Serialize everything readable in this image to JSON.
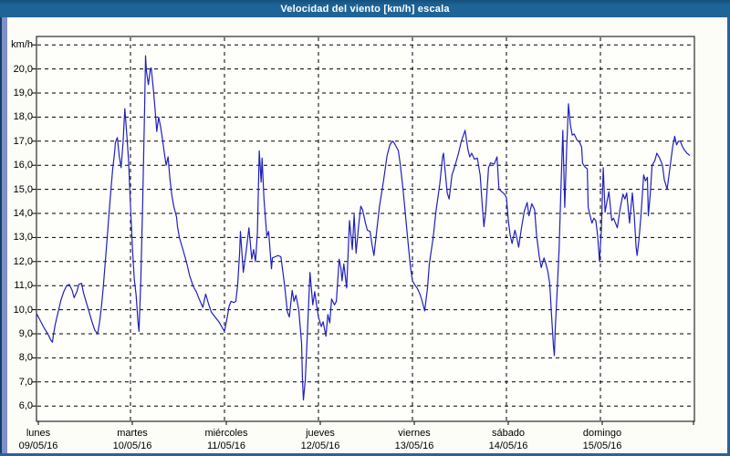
{
  "window": {
    "title": "Velocidad del viento [km/h] escala"
  },
  "colors": {
    "titlebar_bg": "#1e6496",
    "titlebar_text": "#ffffff",
    "frame_left_strip": "#7e91c4",
    "frame_edge": "#2b6399",
    "content_bg": "#fbfdf6",
    "plot_bg": "#fefefb",
    "grid_color": "#000000",
    "line_color": "#2020bf"
  },
  "chart_data": {
    "type": "line",
    "title": "Velocidad del viento [km/h] escala",
    "ylabel": "km/h",
    "xlabel": "",
    "ylim": [
      6,
      21.2
    ],
    "xlim_days": [
      0,
      7
    ],
    "grid": true,
    "grid_style": "dashed",
    "legend": false,
    "y_unit_label": "km/h",
    "y_ticks": [
      {
        "v": 20,
        "label": "20,0"
      },
      {
        "v": 19,
        "label": "19,0"
      },
      {
        "v": 18,
        "label": "18,0"
      },
      {
        "v": 17,
        "label": "17,0"
      },
      {
        "v": 16,
        "label": "16,0"
      },
      {
        "v": 15,
        "label": "15,0"
      },
      {
        "v": 14,
        "label": "14,0"
      },
      {
        "v": 13,
        "label": "13,0"
      },
      {
        "v": 12,
        "label": "12,0"
      },
      {
        "v": 11,
        "label": "11,0"
      },
      {
        "v": 10,
        "label": "10,0"
      },
      {
        "v": 9,
        "label": "9,0"
      },
      {
        "v": 8,
        "label": "8,0"
      },
      {
        "v": 7,
        "label": "7,0"
      },
      {
        "v": 6,
        "label": "6,0"
      }
    ],
    "x_ticks": [
      {
        "day": "lunes",
        "date": "09/05/16"
      },
      {
        "day": "martes",
        "date": "10/05/16"
      },
      {
        "day": "miércoles",
        "date": "11/05/16"
      },
      {
        "day": "jueves",
        "date": "12/05/16"
      },
      {
        "day": "viernes",
        "date": "13/05/16"
      },
      {
        "day": "sábado",
        "date": "14/05/16"
      },
      {
        "day": "domingo",
        "date": "15/05/16"
      }
    ],
    "series": [
      {
        "name": "Velocidad del viento",
        "unit": "km/h",
        "points": [
          [
            0,
            9.85
          ],
          [
            0.04,
            9.55
          ],
          [
            0.08,
            9.25
          ],
          [
            0.12,
            9.0
          ],
          [
            0.15,
            8.75
          ],
          [
            0.17,
            8.65
          ],
          [
            0.18,
            8.95
          ],
          [
            0.2,
            9.4
          ],
          [
            0.23,
            9.9
          ],
          [
            0.26,
            10.4
          ],
          [
            0.29,
            10.75
          ],
          [
            0.32,
            11.0
          ],
          [
            0.35,
            11.05
          ],
          [
            0.38,
            10.8
          ],
          [
            0.4,
            10.5
          ],
          [
            0.43,
            10.75
          ],
          [
            0.45,
            11.05
          ],
          [
            0.48,
            11.1
          ],
          [
            0.5,
            10.7
          ],
          [
            0.53,
            10.3
          ],
          [
            0.56,
            9.9
          ],
          [
            0.59,
            9.5
          ],
          [
            0.62,
            9.15
          ],
          [
            0.65,
            9.0
          ],
          [
            0.67,
            9.45
          ],
          [
            0.69,
            10.1
          ],
          [
            0.71,
            10.9
          ],
          [
            0.73,
            11.9
          ],
          [
            0.75,
            12.9
          ],
          [
            0.77,
            13.9
          ],
          [
            0.79,
            14.9
          ],
          [
            0.81,
            15.8
          ],
          [
            0.83,
            16.5
          ],
          [
            0.84,
            16.95
          ],
          [
            0.86,
            17.15
          ],
          [
            0.88,
            16.4
          ],
          [
            0.9,
            15.9
          ],
          [
            0.92,
            16.9
          ],
          [
            0.94,
            18.35
          ],
          [
            0.96,
            17.3
          ],
          [
            0.98,
            16.2
          ],
          [
            1.0,
            14.3
          ],
          [
            1.02,
            12.6
          ],
          [
            1.04,
            11.3
          ],
          [
            1.06,
            10.6
          ],
          [
            1.08,
            9.5
          ],
          [
            1.09,
            9.1
          ],
          [
            1.11,
            11.2
          ],
          [
            1.13,
            14.5
          ],
          [
            1.15,
            18.2
          ],
          [
            1.16,
            20.55
          ],
          [
            1.17,
            19.9
          ],
          [
            1.19,
            19.35
          ],
          [
            1.21,
            19.95
          ],
          [
            1.22,
            20.05
          ],
          [
            1.24,
            19.3
          ],
          [
            1.26,
            18.4
          ],
          [
            1.28,
            17.4
          ],
          [
            1.3,
            18.0
          ],
          [
            1.32,
            17.6
          ],
          [
            1.34,
            17.1
          ],
          [
            1.36,
            16.5
          ],
          [
            1.38,
            16.0
          ],
          [
            1.4,
            16.35
          ],
          [
            1.42,
            15.4
          ],
          [
            1.44,
            14.75
          ],
          [
            1.46,
            14.3
          ],
          [
            1.49,
            13.85
          ],
          [
            1.5,
            13.45
          ],
          [
            1.52,
            13.0
          ],
          [
            1.55,
            12.6
          ],
          [
            1.58,
            12.2
          ],
          [
            1.6,
            11.9
          ],
          [
            1.63,
            11.4
          ],
          [
            1.67,
            10.95
          ],
          [
            1.7,
            10.75
          ],
          [
            1.73,
            10.45
          ],
          [
            1.77,
            10.1
          ],
          [
            1.8,
            10.65
          ],
          [
            1.83,
            10.25
          ],
          [
            1.86,
            9.9
          ],
          [
            1.89,
            9.75
          ],
          [
            1.92,
            9.6
          ],
          [
            1.94,
            9.5
          ],
          [
            1.97,
            9.3
          ],
          [
            2.0,
            9.1
          ],
          [
            2.03,
            9.7
          ],
          [
            2.05,
            10.15
          ],
          [
            2.07,
            10.35
          ],
          [
            2.1,
            10.3
          ],
          [
            2.12,
            10.35
          ],
          [
            2.14,
            11.0
          ],
          [
            2.16,
            12.3
          ],
          [
            2.17,
            13.25
          ],
          [
            2.2,
            11.55
          ],
          [
            2.23,
            12.4
          ],
          [
            2.26,
            13.4
          ],
          [
            2.29,
            12.1
          ],
          [
            2.31,
            12.5
          ],
          [
            2.33,
            12.0
          ],
          [
            2.35,
            13.2
          ],
          [
            2.37,
            16.6
          ],
          [
            2.39,
            15.3
          ],
          [
            2.4,
            16.3
          ],
          [
            2.42,
            14.6
          ],
          [
            2.45,
            13.05
          ],
          [
            2.47,
            13.25
          ],
          [
            2.5,
            11.7
          ],
          [
            2.51,
            12.15
          ],
          [
            2.54,
            12.2
          ],
          [
            2.57,
            12.25
          ],
          [
            2.6,
            12.2
          ],
          [
            2.62,
            11.6
          ],
          [
            2.64,
            11.0
          ],
          [
            2.67,
            9.9
          ],
          [
            2.69,
            9.7
          ],
          [
            2.72,
            10.8
          ],
          [
            2.74,
            10.35
          ],
          [
            2.76,
            10.6
          ],
          [
            2.79,
            10.0
          ],
          [
            2.82,
            8.6
          ],
          [
            2.83,
            7.1
          ],
          [
            2.84,
            6.25
          ],
          [
            2.86,
            7.1
          ],
          [
            2.88,
            8.8
          ],
          [
            2.91,
            11.55
          ],
          [
            2.94,
            10.2
          ],
          [
            2.96,
            10.75
          ],
          [
            2.98,
            10.2
          ],
          [
            3.0,
            9.7
          ],
          [
            3.03,
            9.3
          ],
          [
            3.05,
            9.5
          ],
          [
            3.08,
            8.9
          ],
          [
            3.1,
            9.8
          ],
          [
            3.12,
            9.45
          ],
          [
            3.14,
            10.45
          ],
          [
            3.17,
            10.2
          ],
          [
            3.19,
            10.35
          ],
          [
            3.22,
            12.1
          ],
          [
            3.24,
            11.7
          ],
          [
            3.25,
            11.2
          ],
          [
            3.27,
            11.9
          ],
          [
            3.3,
            10.9
          ],
          [
            3.33,
            13.7
          ],
          [
            3.36,
            12.5
          ],
          [
            3.38,
            13.95
          ],
          [
            3.4,
            12.35
          ],
          [
            3.43,
            13.6
          ],
          [
            3.45,
            14.3
          ],
          [
            3.47,
            14.15
          ],
          [
            3.5,
            13.6
          ],
          [
            3.52,
            13.3
          ],
          [
            3.55,
            13.25
          ],
          [
            3.57,
            12.7
          ],
          [
            3.59,
            12.25
          ],
          [
            3.62,
            13.3
          ],
          [
            3.65,
            14.3
          ],
          [
            3.69,
            15.3
          ],
          [
            3.73,
            16.4
          ],
          [
            3.76,
            16.85
          ],
          [
            3.79,
            17.0
          ],
          [
            3.81,
            16.9
          ],
          [
            3.85,
            16.6
          ],
          [
            3.87,
            16.05
          ],
          [
            3.9,
            15.0
          ],
          [
            3.93,
            13.75
          ],
          [
            3.96,
            12.5
          ],
          [
            3.98,
            11.75
          ],
          [
            4.0,
            11.2
          ],
          [
            4.03,
            11.0
          ],
          [
            4.05,
            10.9
          ],
          [
            4.08,
            10.65
          ],
          [
            4.1,
            10.4
          ],
          [
            4.13,
            9.95
          ],
          [
            4.16,
            10.9
          ],
          [
            4.18,
            11.9
          ],
          [
            4.22,
            13.0
          ],
          [
            4.25,
            14.1
          ],
          [
            4.29,
            15.2
          ],
          [
            4.32,
            16.35
          ],
          [
            4.33,
            16.5
          ],
          [
            4.37,
            14.85
          ],
          [
            4.39,
            14.6
          ],
          [
            4.42,
            15.6
          ],
          [
            4.45,
            15.95
          ],
          [
            4.49,
            16.5
          ],
          [
            4.52,
            17.0
          ],
          [
            4.56,
            17.45
          ],
          [
            4.59,
            16.65
          ],
          [
            4.61,
            16.35
          ],
          [
            4.63,
            16.5
          ],
          [
            4.66,
            16.25
          ],
          [
            4.69,
            16.3
          ],
          [
            4.72,
            15.6
          ],
          [
            4.74,
            14.5
          ],
          [
            4.76,
            13.45
          ],
          [
            4.78,
            14.1
          ],
          [
            4.81,
            15.9
          ],
          [
            4.83,
            16.1
          ],
          [
            4.87,
            16.05
          ],
          [
            4.9,
            16.35
          ],
          [
            4.92,
            15.0
          ],
          [
            4.95,
            14.9
          ],
          [
            4.98,
            14.8
          ],
          [
            5.0,
            14.65
          ],
          [
            5.02,
            13.7
          ],
          [
            5.04,
            13.1
          ],
          [
            5.06,
            12.75
          ],
          [
            5.09,
            13.3
          ],
          [
            5.11,
            13.0
          ],
          [
            5.13,
            12.6
          ],
          [
            5.16,
            13.4
          ],
          [
            5.19,
            14.1
          ],
          [
            5.22,
            14.45
          ],
          [
            5.24,
            13.9
          ],
          [
            5.27,
            14.4
          ],
          [
            5.3,
            14.15
          ],
          [
            5.32,
            13.1
          ],
          [
            5.35,
            12.2
          ],
          [
            5.37,
            11.75
          ],
          [
            5.4,
            12.15
          ],
          [
            5.42,
            11.9
          ],
          [
            5.44,
            11.6
          ],
          [
            5.46,
            11.1
          ],
          [
            5.48,
            9.8
          ],
          [
            5.5,
            8.5
          ],
          [
            5.51,
            8.1
          ],
          [
            5.52,
            9.3
          ],
          [
            5.54,
            10.8
          ],
          [
            5.56,
            12.5
          ],
          [
            5.58,
            15.0
          ],
          [
            5.6,
            17.45
          ],
          [
            5.62,
            14.25
          ],
          [
            5.64,
            16.6
          ],
          [
            5.66,
            18.55
          ],
          [
            5.68,
            17.7
          ],
          [
            5.7,
            17.25
          ],
          [
            5.72,
            17.3
          ],
          [
            5.75,
            17.05
          ],
          [
            5.78,
            16.95
          ],
          [
            5.8,
            16.75
          ],
          [
            5.81,
            16.1
          ],
          [
            5.83,
            15.95
          ],
          [
            5.86,
            15.85
          ],
          [
            5.87,
            14.25
          ],
          [
            5.89,
            13.9
          ],
          [
            5.91,
            13.6
          ],
          [
            5.93,
            13.8
          ],
          [
            5.95,
            13.7
          ],
          [
            5.97,
            13.1
          ],
          [
            5.99,
            12.0
          ],
          [
            6.01,
            13.3
          ],
          [
            6.03,
            15.9
          ],
          [
            6.05,
            14.05
          ],
          [
            6.07,
            14.5
          ],
          [
            6.09,
            14.9
          ],
          [
            6.12,
            13.7
          ],
          [
            6.14,
            13.8
          ],
          [
            6.17,
            13.5
          ],
          [
            6.18,
            13.4
          ],
          [
            6.21,
            14.2
          ],
          [
            6.24,
            14.8
          ],
          [
            6.26,
            14.6
          ],
          [
            6.28,
            14.85
          ],
          [
            6.31,
            13.6
          ],
          [
            6.34,
            14.85
          ],
          [
            6.36,
            13.9
          ],
          [
            6.38,
            12.6
          ],
          [
            6.39,
            12.25
          ],
          [
            6.41,
            12.9
          ],
          [
            6.43,
            13.85
          ],
          [
            6.46,
            15.6
          ],
          [
            6.48,
            15.35
          ],
          [
            6.5,
            15.5
          ],
          [
            6.51,
            13.9
          ],
          [
            6.53,
            14.8
          ],
          [
            6.55,
            16.0
          ],
          [
            6.58,
            16.2
          ],
          [
            6.6,
            16.5
          ],
          [
            6.63,
            16.3
          ],
          [
            6.66,
            16.0
          ],
          [
            6.68,
            15.4
          ],
          [
            6.71,
            15.0
          ],
          [
            6.74,
            15.9
          ],
          [
            6.77,
            16.8
          ],
          [
            6.79,
            17.2
          ],
          [
            6.81,
            16.85
          ],
          [
            6.83,
            17.0
          ],
          [
            6.85,
            17.0
          ],
          [
            6.87,
            16.8
          ],
          [
            6.89,
            16.65
          ],
          [
            6.92,
            16.5
          ],
          [
            6.95,
            16.4
          ]
        ]
      }
    ]
  }
}
